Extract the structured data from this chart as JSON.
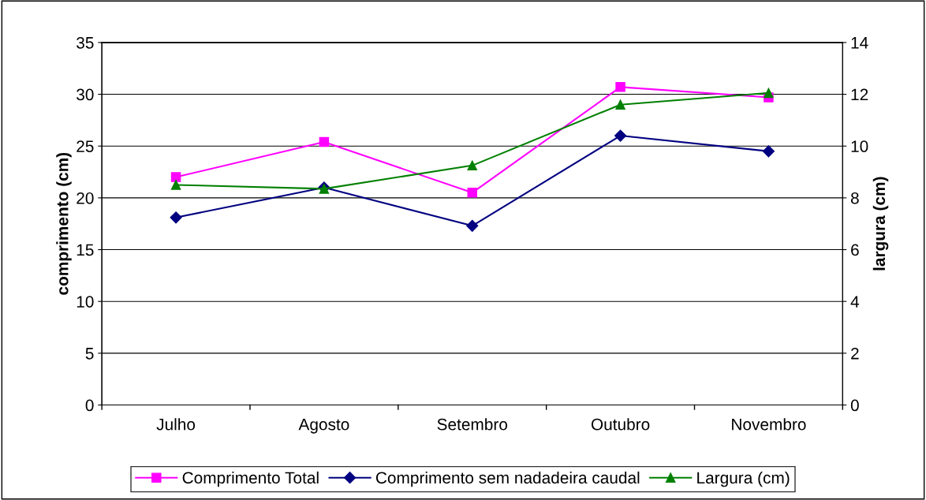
{
  "chart_data": {
    "type": "line",
    "ylabel": "comprimento (cm)",
    "y2label": "largura (cm)",
    "categories": [
      "Julho",
      "Agosto",
      "Setembro",
      "Outubro",
      "Novembro"
    ],
    "series": [
      {
        "name": "Comprimento Total",
        "color": "#ff00ff",
        "marker": "square",
        "values": [
          22.0,
          25.4,
          20.5,
          30.7,
          29.7
        ]
      },
      {
        "name": "Comprimento sem nadadeira caudal",
        "color": "#000080",
        "marker": "diamond",
        "values": [
          18.1,
          21.0,
          17.3,
          26.0,
          24.5
        ]
      },
      {
        "name": "Largura (cm)",
        "color": "#008000",
        "marker": "triangle",
        "axis": "y2",
        "values": [
          8.5,
          8.35,
          9.25,
          11.6,
          12.05
        ]
      }
    ],
    "ylim": [
      0,
      35
    ],
    "yticks": [
      0,
      5,
      10,
      15,
      20,
      25,
      30,
      35
    ],
    "y2lim": [
      0,
      14
    ],
    "y2ticks": [
      0,
      2,
      4,
      6,
      8,
      10,
      12,
      14
    ],
    "grid": "y",
    "legend": "bottom"
  }
}
